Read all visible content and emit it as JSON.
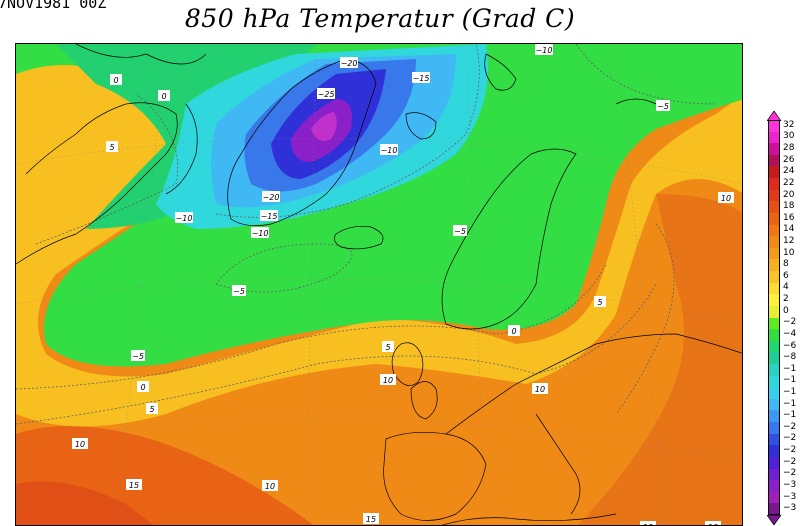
{
  "header": {
    "corner_text": "7NOV1981 00Z",
    "title": "850 hPa Temperatur (Grad C)"
  },
  "legend": {
    "scale_labels": [
      "32",
      "30",
      "28",
      "26",
      "24",
      "22",
      "20",
      "18",
      "16",
      "14",
      "12",
      "10",
      "8",
      "6",
      "4",
      "2",
      "0",
      "−2",
      "−4",
      "−6",
      "−8",
      "−1",
      "−1",
      "−1",
      "−1",
      "−1",
      "−2",
      "−2",
      "−2",
      "−2",
      "−2",
      "−3",
      "−3",
      "−3"
    ],
    "colors": [
      "#ff33dd",
      "#ee22cc",
      "#cc1199",
      "#b0105a",
      "#c81c1c",
      "#dd2a1a",
      "#e03a18",
      "#e55016",
      "#e86414",
      "#ed7814",
      "#f08a16",
      "#f39c1a",
      "#f7b020",
      "#fac428",
      "#fcdc30",
      "#fff03c",
      "#e8ee30",
      "#60ea20",
      "#30e040",
      "#20d870",
      "#22cc99",
      "#2ad0c0",
      "#30d8dd",
      "#38d0f0",
      "#40b8f4",
      "#3c98f0",
      "#3878ea",
      "#3050e0",
      "#3030d8",
      "#5020d8",
      "#7020d0",
      "#8c20c8",
      "#a020b8",
      "#7a1690"
    ]
  },
  "map": {
    "isotherm_labels": [
      "−20",
      "−25",
      "−15",
      "−10",
      "−10",
      "−5",
      "0",
      "0",
      "5",
      "−20",
      "−15",
      "−10",
      "−10",
      "−5",
      "−5",
      "10",
      "5",
      "−5",
      "0",
      "5",
      "5",
      "0",
      "10",
      "10",
      "10",
      "10",
      "15",
      "10",
      "15",
      "10"
    ]
  }
}
